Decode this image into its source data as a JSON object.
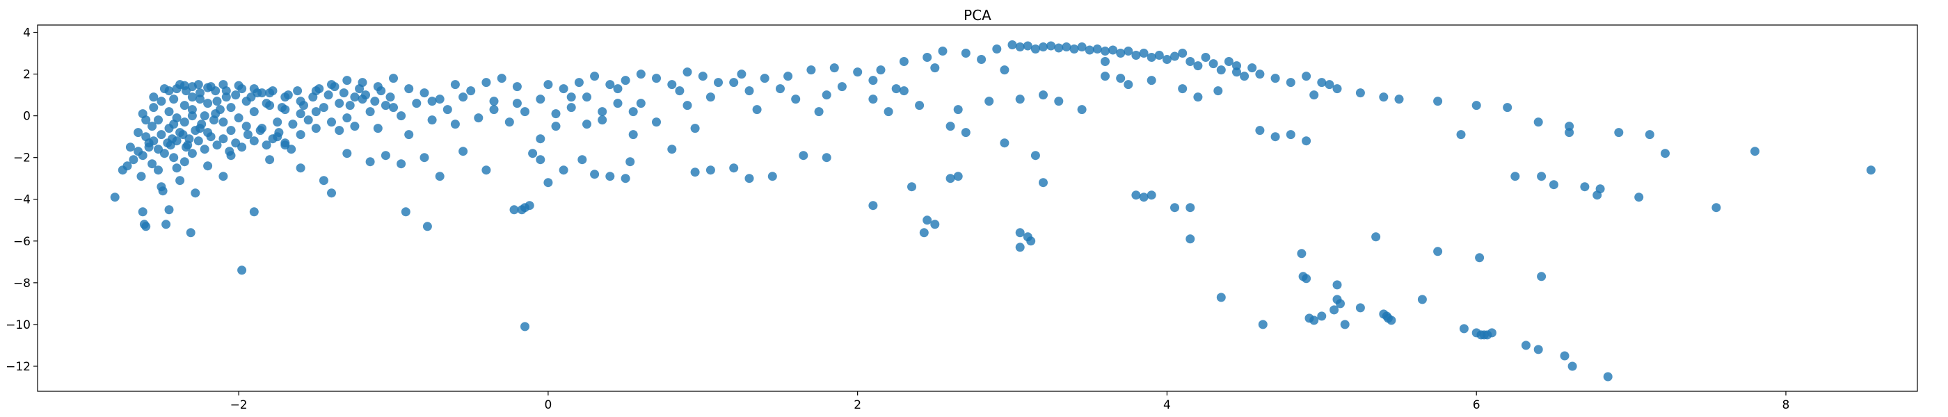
{
  "chart_data": {
    "type": "scatter",
    "title": "PCA",
    "xlabel": "",
    "ylabel": "",
    "xlim": [
      -3.3,
      8.85
    ],
    "ylim": [
      -13.2,
      4.35
    ],
    "xticks": [
      -2,
      0,
      2,
      4,
      6,
      8
    ],
    "yticks": [
      -12,
      -10,
      -8,
      -6,
      -4,
      -2,
      0,
      2,
      4
    ],
    "grid": false,
    "legend": "none",
    "color": "#1f77b4",
    "opacity": 0.8,
    "points": [
      [
        -2.8,
        -3.9
      ],
      [
        -2.75,
        -2.6
      ],
      [
        -2.72,
        -2.4
      ],
      [
        -2.68,
        -2.1
      ],
      [
        -2.65,
        -1.7
      ],
      [
        -2.63,
        -2.9
      ],
      [
        -2.62,
        -4.6
      ],
      [
        -2.61,
        -5.2
      ],
      [
        -2.6,
        -5.3
      ],
      [
        -2.58,
        -1.5
      ],
      [
        -2.56,
        -2.3
      ],
      [
        -2.55,
        -1.2
      ],
      [
        -2.52,
        -2.6
      ],
      [
        -2.5,
        -3.4
      ],
      [
        -2.49,
        -3.6
      ],
      [
        -2.47,
        -5.2
      ],
      [
        -2.45,
        -4.5
      ],
      [
        -2.43,
        -1.1
      ],
      [
        -2.42,
        -2.0
      ],
      [
        -2.4,
        -2.5
      ],
      [
        -2.38,
        -3.1
      ],
      [
        -2.35,
        -2.2
      ],
      [
        -2.33,
        -1.4
      ],
      [
        -2.31,
        -5.6
      ],
      [
        -2.28,
        -3.7
      ],
      [
        -2.2,
        -2.4
      ],
      [
        -2.1,
        -2.9
      ],
      [
        -2.05,
        -1.9
      ],
      [
        -1.98,
        -7.4
      ],
      [
        -1.9,
        -4.6
      ],
      [
        -1.8,
        -2.1
      ],
      [
        -1.7,
        -1.4
      ],
      [
        -1.6,
        -2.5
      ],
      [
        -1.45,
        -3.1
      ],
      [
        -1.4,
        -3.7
      ],
      [
        -1.3,
        -1.8
      ],
      [
        -1.15,
        -2.2
      ],
      [
        -1.05,
        -1.9
      ],
      [
        -0.95,
        -2.3
      ],
      [
        -0.92,
        -4.6
      ],
      [
        -0.8,
        -2.0
      ],
      [
        -0.78,
        -5.3
      ],
      [
        -0.7,
        -2.9
      ],
      [
        -0.55,
        -1.7
      ],
      [
        -0.4,
        -2.6
      ],
      [
        -0.22,
        -4.5
      ],
      [
        -0.17,
        -4.5
      ],
      [
        -0.15,
        -4.4
      ],
      [
        -0.12,
        -4.3
      ],
      [
        -0.15,
        -10.1
      ],
      [
        -0.1,
        -1.8
      ],
      [
        -0.05,
        -2.1
      ],
      [
        0.0,
        -3.2
      ],
      [
        0.1,
        -2.6
      ],
      [
        0.22,
        -2.1
      ],
      [
        0.3,
        -2.8
      ],
      [
        0.4,
        -2.9
      ],
      [
        0.5,
        -3.0
      ],
      [
        0.53,
        -2.2
      ],
      [
        0.8,
        -1.6
      ],
      [
        0.95,
        -2.7
      ],
      [
        1.05,
        -2.6
      ],
      [
        1.2,
        -2.5
      ],
      [
        1.3,
        -3.0
      ],
      [
        1.45,
        -2.9
      ],
      [
        1.65,
        -1.9
      ],
      [
        1.8,
        -2.0
      ],
      [
        2.1,
        -4.3
      ],
      [
        2.35,
        -3.4
      ],
      [
        2.45,
        -5.0
      ],
      [
        2.5,
        -5.2
      ],
      [
        2.43,
        -5.6
      ],
      [
        2.6,
        -3.0
      ],
      [
        2.65,
        -2.9
      ],
      [
        2.95,
        -1.3
      ],
      [
        3.05,
        -5.6
      ],
      [
        3.05,
        -6.3
      ],
      [
        3.1,
        -5.8
      ],
      [
        3.12,
        -6.0
      ],
      [
        3.2,
        -3.2
      ],
      [
        3.15,
        -1.9
      ],
      [
        3.8,
        -3.8
      ],
      [
        3.85,
        -3.9
      ],
      [
        3.9,
        -3.8
      ],
      [
        4.05,
        -4.4
      ],
      [
        4.15,
        -5.9
      ],
      [
        4.15,
        -4.4
      ],
      [
        4.35,
        -8.7
      ],
      [
        4.62,
        -10.0
      ],
      [
        4.87,
        -6.6
      ],
      [
        4.88,
        -7.7
      ],
      [
        4.9,
        -7.8
      ],
      [
        4.92,
        -9.7
      ],
      [
        4.95,
        -9.8
      ],
      [
        5.0,
        -9.6
      ],
      [
        5.08,
        -9.3
      ],
      [
        5.1,
        -8.1
      ],
      [
        5.1,
        -8.8
      ],
      [
        5.12,
        -9.0
      ],
      [
        5.15,
        -10.0
      ],
      [
        5.25,
        -9.2
      ],
      [
        5.35,
        -5.8
      ],
      [
        5.4,
        -9.5
      ],
      [
        5.42,
        -9.6
      ],
      [
        5.43,
        -9.7
      ],
      [
        5.45,
        -9.8
      ],
      [
        5.65,
        -8.8
      ],
      [
        5.75,
        -6.5
      ],
      [
        5.92,
        -10.2
      ],
      [
        6.0,
        -10.4
      ],
      [
        6.03,
        -10.5
      ],
      [
        6.05,
        -10.5
      ],
      [
        6.07,
        -10.5
      ],
      [
        6.1,
        -10.4
      ],
      [
        6.02,
        -6.8
      ],
      [
        6.32,
        -11.0
      ],
      [
        6.4,
        -11.2
      ],
      [
        6.42,
        -7.7
      ],
      [
        6.57,
        -11.5
      ],
      [
        6.62,
        -12.0
      ],
      [
        6.85,
        -12.5
      ],
      [
        6.25,
        -2.9
      ],
      [
        6.42,
        -2.9
      ],
      [
        6.5,
        -3.3
      ],
      [
        6.7,
        -3.4
      ],
      [
        6.78,
        -3.8
      ],
      [
        6.8,
        -3.5
      ],
      [
        7.05,
        -3.9
      ],
      [
        7.55,
        -4.4
      ],
      [
        8.55,
        -2.6
      ],
      [
        7.8,
        -1.7
      ],
      [
        7.22,
        -1.8
      ],
      [
        7.12,
        -0.9
      ],
      [
        6.92,
        -0.8
      ],
      [
        6.6,
        -0.8
      ],
      [
        6.4,
        -0.3
      ],
      [
        6.6,
        -0.5
      ],
      [
        6.2,
        0.4
      ],
      [
        6.0,
        0.5
      ],
      [
        5.9,
        -0.9
      ],
      [
        5.75,
        0.7
      ],
      [
        5.5,
        0.8
      ],
      [
        5.4,
        0.9
      ],
      [
        5.25,
        1.1
      ],
      [
        5.1,
        1.3
      ],
      [
        5.0,
        1.6
      ],
      [
        4.95,
        1.0
      ],
      [
        4.9,
        -1.2
      ],
      [
        4.8,
        -0.9
      ],
      [
        4.7,
        -1.0
      ],
      [
        4.6,
        -0.7
      ],
      [
        4.55,
        2.3
      ],
      [
        4.45,
        2.1
      ],
      [
        4.33,
        1.2
      ],
      [
        4.2,
        0.9
      ],
      [
        4.1,
        1.3
      ],
      [
        3.9,
        1.7
      ],
      [
        3.75,
        1.5
      ],
      [
        3.6,
        2.6
      ],
      [
        3.45,
        0.3
      ],
      [
        3.3,
        0.7
      ],
      [
        3.2,
        1.0
      ],
      [
        3.05,
        0.8
      ],
      [
        2.95,
        2.2
      ],
      [
        2.85,
        0.7
      ],
      [
        2.7,
        -0.8
      ],
      [
        2.65,
        0.3
      ],
      [
        2.6,
        -0.5
      ],
      [
        2.5,
        2.3
      ],
      [
        2.4,
        0.5
      ],
      [
        2.3,
        1.2
      ],
      [
        2.2,
        0.2
      ],
      [
        2.1,
        0.8
      ],
      [
        1.9,
        1.4
      ],
      [
        1.75,
        0.2
      ],
      [
        1.6,
        0.8
      ],
      [
        1.5,
        1.3
      ],
      [
        1.35,
        0.3
      ],
      [
        1.2,
        1.6
      ],
      [
        1.05,
        0.9
      ],
      [
        0.95,
        -0.6
      ],
      [
        0.85,
        1.2
      ],
      [
        0.7,
        -0.3
      ],
      [
        0.6,
        0.6
      ],
      [
        0.55,
        -0.9
      ],
      [
        0.45,
        1.3
      ],
      [
        0.35,
        0.2
      ],
      [
        0.25,
        -0.4
      ],
      [
        0.15,
        0.9
      ],
      [
        0.05,
        0.1
      ],
      [
        -0.05,
        -1.1
      ],
      [
        -0.2,
        0.6
      ],
      [
        -0.35,
        0.3
      ],
      [
        -0.5,
        1.2
      ],
      [
        -0.6,
        -0.4
      ],
      [
        -0.75,
        0.7
      ],
      [
        -0.9,
        -0.9
      ],
      [
        -1.0,
        0.4
      ],
      [
        -1.1,
        -0.6
      ],
      [
        -1.25,
        0.9
      ],
      [
        -1.35,
        -0.7
      ],
      [
        -1.5,
        0.2
      ],
      [
        -1.6,
        -0.9
      ],
      [
        -1.75,
        -0.3
      ],
      [
        -1.85,
        1.1
      ],
      [
        -1.95,
        -0.5
      ],
      [
        -2.05,
        0.4
      ],
      [
        -2.15,
        1.2
      ],
      [
        -2.25,
        0.8
      ],
      [
        -2.3,
        1.4
      ],
      [
        -2.35,
        1.45
      ],
      [
        -2.4,
        1.3
      ],
      [
        -2.45,
        1.2
      ],
      [
        -2.5,
        0.7
      ],
      [
        -2.55,
        0.4
      ],
      [
        -2.6,
        -0.2
      ],
      [
        -2.65,
        -0.8
      ],
      [
        -2.45,
        0.2
      ],
      [
        -2.35,
        -0.3
      ],
      [
        -2.3,
        0.0
      ],
      [
        -2.25,
        -0.6
      ],
      [
        -2.2,
        1.35
      ],
      [
        -2.1,
        1.5
      ],
      [
        -2.0,
        1.45
      ],
      [
        -1.9,
        1.3
      ],
      [
        -1.8,
        1.1
      ],
      [
        -1.7,
        0.9
      ],
      [
        -1.6,
        0.7
      ],
      [
        -1.5,
        1.2
      ],
      [
        -1.4,
        1.5
      ],
      [
        -1.3,
        1.7
      ],
      [
        -1.2,
        1.6
      ],
      [
        -1.1,
        1.4
      ],
      [
        -1.0,
        1.8
      ],
      [
        -0.9,
        1.3
      ],
      [
        -0.8,
        1.1
      ],
      [
        -0.7,
        0.8
      ],
      [
        -0.6,
        1.5
      ],
      [
        -0.4,
        1.6
      ],
      [
        -0.3,
        1.8
      ],
      [
        -0.2,
        1.4
      ],
      [
        0.0,
        1.5
      ],
      [
        0.1,
        1.3
      ],
      [
        0.2,
        1.6
      ],
      [
        0.3,
        1.9
      ],
      [
        0.4,
        1.5
      ],
      [
        0.5,
        1.7
      ],
      [
        0.6,
        2.0
      ],
      [
        0.7,
        1.8
      ],
      [
        0.8,
        1.5
      ],
      [
        0.9,
        2.1
      ],
      [
        1.0,
        1.9
      ],
      [
        1.1,
        1.6
      ],
      [
        1.25,
        2.0
      ],
      [
        1.4,
        1.8
      ],
      [
        1.55,
        1.9
      ],
      [
        1.7,
        2.2
      ],
      [
        1.85,
        2.3
      ],
      [
        2.0,
        2.1
      ],
      [
        2.15,
        2.2
      ],
      [
        2.3,
        2.6
      ],
      [
        2.45,
        2.8
      ],
      [
        2.55,
        3.1
      ],
      [
        2.7,
        3.0
      ],
      [
        2.8,
        2.7
      ],
      [
        2.9,
        3.2
      ],
      [
        3.0,
        3.4
      ],
      [
        3.05,
        3.3
      ],
      [
        3.1,
        3.35
      ],
      [
        3.15,
        3.2
      ],
      [
        3.2,
        3.3
      ],
      [
        3.25,
        3.35
      ],
      [
        3.3,
        3.25
      ],
      [
        3.35,
        3.3
      ],
      [
        3.4,
        3.2
      ],
      [
        3.45,
        3.3
      ],
      [
        3.5,
        3.15
      ],
      [
        3.55,
        3.2
      ],
      [
        3.6,
        3.1
      ],
      [
        3.65,
        3.15
      ],
      [
        3.7,
        3.0
      ],
      [
        3.75,
        3.1
      ],
      [
        3.8,
        2.9
      ],
      [
        3.85,
        3.0
      ],
      [
        3.9,
        2.8
      ],
      [
        3.95,
        2.9
      ],
      [
        4.0,
        2.7
      ],
      [
        4.05,
        2.85
      ],
      [
        4.1,
        3.0
      ],
      [
        4.15,
        2.6
      ],
      [
        4.2,
        2.4
      ],
      [
        4.25,
        2.8
      ],
      [
        4.3,
        2.5
      ],
      [
        4.35,
        2.2
      ],
      [
        4.4,
        2.6
      ],
      [
        4.45,
        2.4
      ],
      [
        4.5,
        1.9
      ],
      [
        4.6,
        2.0
      ],
      [
        4.7,
        1.8
      ],
      [
        4.8,
        1.6
      ],
      [
        4.9,
        1.9
      ],
      [
        5.05,
        1.5
      ],
      [
        3.6,
        1.9
      ],
      [
        3.7,
        1.8
      ],
      [
        2.1,
        1.7
      ],
      [
        2.25,
        1.3
      ],
      [
        1.8,
        1.0
      ],
      [
        1.3,
        1.2
      ],
      [
        0.9,
        0.5
      ],
      [
        -2.7,
        -1.5
      ],
      [
        -2.62,
        -1.9
      ],
      [
        -2.58,
        -1.3
      ],
      [
        -2.52,
        -1.6
      ],
      [
        -2.48,
        -1.8
      ],
      [
        -2.44,
        -1.4
      ],
      [
        -2.4,
        -1.2
      ],
      [
        -2.36,
        -0.9
      ],
      [
        -2.32,
        -1.1
      ],
      [
        -2.28,
        -0.7
      ],
      [
        -2.24,
        -0.4
      ],
      [
        -2.2,
        -0.8
      ],
      [
        -2.16,
        -0.2
      ],
      [
        -2.12,
        0.3
      ],
      [
        -2.08,
        0.9
      ],
      [
        -2.5,
        -0.9
      ],
      [
        -2.45,
        -0.6
      ],
      [
        -2.4,
        -0.1
      ],
      [
        -2.35,
        0.5
      ],
      [
        -2.3,
        0.9
      ],
      [
        -2.25,
        1.1
      ],
      [
        -2.2,
        0.6
      ],
      [
        -2.15,
        0.1
      ],
      [
        -2.1,
        -0.3
      ],
      [
        -2.05,
        -0.7
      ],
      [
        -2.0,
        -0.1
      ],
      [
        -1.95,
        0.7
      ],
      [
        -1.9,
        0.2
      ],
      [
        -1.85,
        -0.6
      ],
      [
        -1.8,
        0.5
      ],
      [
        -1.75,
        -1.0
      ],
      [
        -1.7,
        0.3
      ],
      [
        -1.65,
        -0.4
      ],
      [
        -1.6,
        0.1
      ],
      [
        -1.55,
        -0.2
      ],
      [
        -1.5,
        -0.6
      ],
      [
        -1.45,
        0.4
      ],
      [
        -1.4,
        -0.3
      ],
      [
        -1.35,
        0.6
      ],
      [
        -1.3,
        -0.1
      ],
      [
        -1.25,
        -0.5
      ],
      [
        -1.2,
        0.8
      ],
      [
        -1.15,
        0.2
      ],
      [
        -1.05,
        0.5
      ],
      [
        -0.95,
        0.0
      ],
      [
        -0.85,
        0.6
      ],
      [
        -0.75,
        -0.2
      ],
      [
        -0.65,
        0.3
      ],
      [
        -0.55,
        0.9
      ],
      [
        -0.45,
        -0.1
      ],
      [
        -0.35,
        0.7
      ],
      [
        -0.25,
        -0.3
      ],
      [
        -0.15,
        0.2
      ],
      [
        -0.05,
        0.8
      ],
      [
        0.05,
        -0.5
      ],
      [
        0.15,
        0.4
      ],
      [
        0.25,
        0.9
      ],
      [
        0.35,
        -0.2
      ],
      [
        0.45,
        0.6
      ],
      [
        0.55,
        0.2
      ],
      [
        -2.62,
        0.1
      ],
      [
        -2.55,
        0.9
      ],
      [
        -2.48,
        1.3
      ],
      [
        -2.42,
        0.8
      ],
      [
        -2.38,
        1.5
      ],
      [
        -2.34,
        1.2
      ],
      [
        -2.3,
        0.3
      ],
      [
        -2.26,
        1.5
      ],
      [
        -2.22,
        0.0
      ],
      [
        -2.18,
        1.4
      ],
      [
        -2.14,
        0.7
      ],
      [
        -2.08,
        1.2
      ],
      [
        -2.02,
        1.0
      ],
      [
        -1.98,
        1.3
      ],
      [
        -1.92,
        0.9
      ],
      [
        -1.88,
        1.1
      ],
      [
        -1.82,
        0.6
      ],
      [
        -1.78,
        1.2
      ],
      [
        -1.72,
        0.4
      ],
      [
        -1.68,
        1.0
      ],
      [
        -1.62,
        1.2
      ],
      [
        -1.58,
        0.5
      ],
      [
        -1.52,
        0.9
      ],
      [
        -1.48,
        1.3
      ],
      [
        -1.42,
        1.0
      ],
      [
        -1.38,
        1.4
      ],
      [
        -1.32,
        1.1
      ],
      [
        -1.28,
        0.5
      ],
      [
        -1.22,
        1.3
      ],
      [
        -1.18,
        1.0
      ],
      [
        -1.12,
        0.7
      ],
      [
        -1.08,
        1.2
      ],
      [
        -1.02,
        0.9
      ],
      [
        -2.6,
        -1.0
      ],
      [
        -2.56,
        -0.5
      ],
      [
        -2.52,
        -0.2
      ],
      [
        -2.46,
        -1.3
      ],
      [
        -2.42,
        -0.4
      ],
      [
        -2.38,
        -0.8
      ],
      [
        -2.34,
        -1.5
      ],
      [
        -2.3,
        -1.8
      ],
      [
        -2.26,
        -1.2
      ],
      [
        -2.22,
        -1.6
      ],
      [
        -2.18,
        -1.0
      ],
      [
        -2.14,
        -1.4
      ],
      [
        -2.1,
        -1.1
      ],
      [
        -2.06,
        -1.7
      ],
      [
        -2.02,
        -1.3
      ],
      [
        -1.98,
        -1.5
      ],
      [
        -1.94,
        -0.9
      ],
      [
        -1.9,
        -1.2
      ],
      [
        -1.86,
        -0.7
      ],
      [
        -1.82,
        -1.4
      ],
      [
        -1.78,
        -1.1
      ],
      [
        -1.74,
        -0.8
      ],
      [
        -1.7,
        -1.3
      ],
      [
        -1.66,
        -1.6
      ]
    ]
  }
}
